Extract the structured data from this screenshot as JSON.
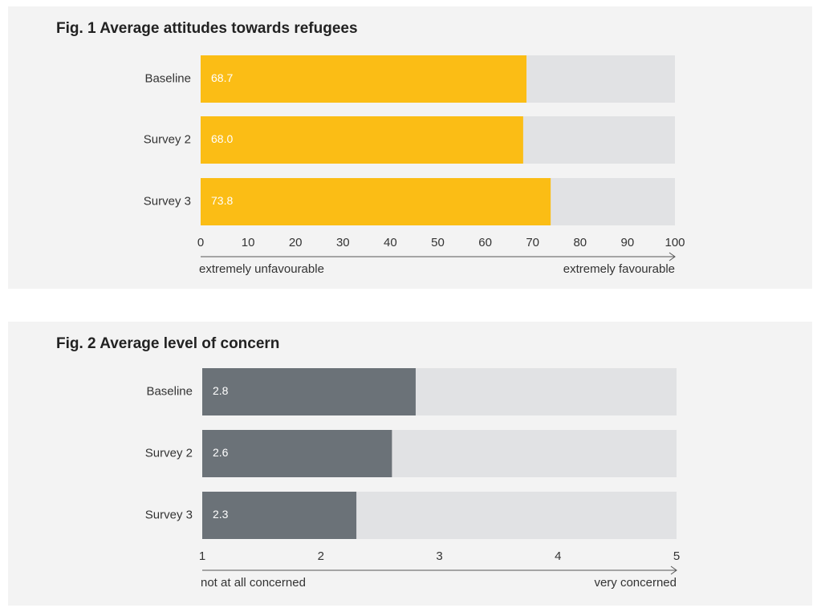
{
  "chart_data": [
    {
      "type": "bar",
      "title": "Fig. 1  Average attitudes towards refugees",
      "categories": [
        "Baseline",
        "Survey 2",
        "Survey 3"
      ],
      "values": [
        68.7,
        68.0,
        73.8
      ],
      "value_labels": [
        "68.7",
        "68.0",
        "73.8"
      ],
      "color": "#fbbd15",
      "track_color": "#e1e2e4",
      "xlim": [
        0,
        100
      ],
      "xticks": [
        0,
        10,
        20,
        30,
        40,
        50,
        60,
        70,
        80,
        90,
        100
      ],
      "x_label_left": "extremely unfavourable",
      "x_label_right": "extremely favourable"
    },
    {
      "type": "bar",
      "title": "Fig. 2  Average level of concern",
      "categories": [
        "Baseline",
        "Survey 2",
        "Survey 3"
      ],
      "values": [
        2.8,
        2.6,
        2.3
      ],
      "value_labels": [
        "2.8",
        "2.6",
        "2.3"
      ],
      "color": "#6b7278",
      "track_color": "#e1e2e4",
      "xlim": [
        1,
        5
      ],
      "xticks": [
        1,
        2,
        3,
        4,
        5
      ],
      "x_label_left": "not at all concerned",
      "x_label_right": "very concerned"
    }
  ]
}
